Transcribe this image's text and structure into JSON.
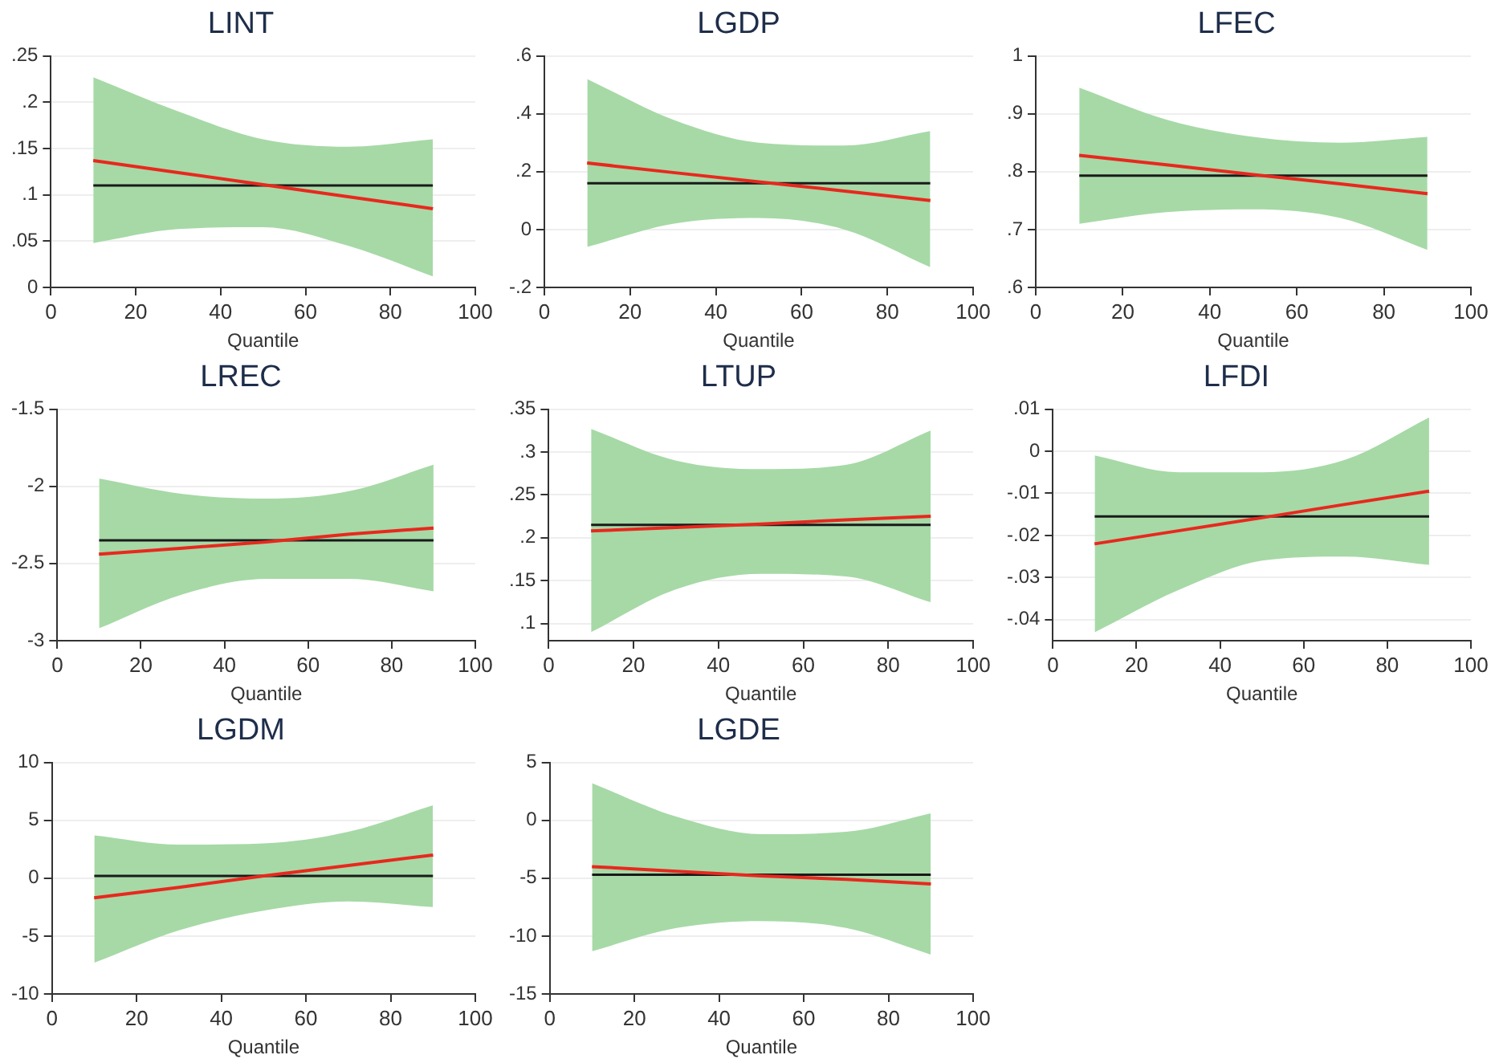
{
  "chart_data": [
    {
      "type": "line",
      "title": "LINT",
      "xlabel": "Quantile",
      "x": [
        10,
        30,
        50,
        70,
        90
      ],
      "xlim": [
        0,
        100
      ],
      "xticks": [
        0,
        20,
        40,
        60,
        80,
        100
      ],
      "ylim": [
        0,
        0.25
      ],
      "yticks": [
        0,
        {
          "value": 0.05,
          "label": ".05"
        },
        {
          "value": 0.1,
          "label": ".1"
        },
        {
          "value": 0.15,
          "label": ".15"
        },
        {
          "value": 0.2,
          "label": ".2"
        },
        {
          "value": 0.25,
          "label": ".25"
        }
      ],
      "grid": "y",
      "legend": false,
      "marker": "none",
      "series": [
        {
          "color": "#e8281e",
          "values": [
            0.137,
            0.124,
            0.111,
            0.098,
            0.085
          ],
          "lower": [
            0.048,
            0.063,
            0.065,
            0.045,
            0.012
          ],
          "upper": [
            0.227,
            0.19,
            0.16,
            0.152,
            0.16
          ]
        }
      ],
      "ref_lines": [
        {
          "axis": "y",
          "value": 0.11,
          "color": "#1a1a1a"
        }
      ]
    },
    {
      "type": "line",
      "title": "LGDP",
      "xlabel": "Quantile",
      "x": [
        10,
        30,
        50,
        70,
        90
      ],
      "xlim": [
        0,
        100
      ],
      "xticks": [
        0,
        20,
        40,
        60,
        80,
        100
      ],
      "ylim": [
        -0.2,
        0.6
      ],
      "yticks": [
        {
          "value": -0.2,
          "label": "-.2"
        },
        0,
        {
          "value": 0.2,
          "label": ".2"
        },
        {
          "value": 0.4,
          "label": ".4"
        },
        {
          "value": 0.6,
          "label": ".6"
        }
      ],
      "grid": "y",
      "legend": false,
      "marker": "none",
      "series": [
        {
          "color": "#e8281e",
          "values": [
            0.23,
            0.197,
            0.165,
            0.133,
            0.1
          ],
          "lower": [
            -0.06,
            0.02,
            0.04,
            0.0,
            -0.13
          ],
          "upper": [
            0.52,
            0.38,
            0.3,
            0.29,
            0.34
          ]
        }
      ],
      "ref_lines": [
        {
          "axis": "y",
          "value": 0.16,
          "color": "#1a1a1a"
        }
      ]
    },
    {
      "type": "line",
      "title": "LFEC",
      "xlabel": "Quantile",
      "x": [
        10,
        30,
        50,
        70,
        90
      ],
      "xlim": [
        0,
        100
      ],
      "xticks": [
        0,
        20,
        40,
        60,
        80,
        100
      ],
      "ylim": [
        0.6,
        1
      ],
      "yticks": [
        {
          "value": 0.6,
          "label": ".6"
        },
        {
          "value": 0.7,
          "label": ".7"
        },
        {
          "value": 0.8,
          "label": ".8"
        },
        {
          "value": 0.9,
          "label": ".9"
        },
        1
      ],
      "grid": "y",
      "legend": false,
      "marker": "none",
      "series": [
        {
          "color": "#e8281e",
          "values": [
            0.828,
            0.812,
            0.795,
            0.779,
            0.762
          ],
          "lower": [
            0.71,
            0.73,
            0.735,
            0.72,
            0.665
          ],
          "upper": [
            0.945,
            0.89,
            0.86,
            0.85,
            0.86
          ]
        }
      ],
      "ref_lines": [
        {
          "axis": "y",
          "value": 0.793,
          "color": "#1a1a1a"
        }
      ]
    },
    {
      "type": "line",
      "title": "LREC",
      "xlabel": "Quantile",
      "x": [
        10,
        30,
        50,
        70,
        90
      ],
      "xlim": [
        0,
        100
      ],
      "xticks": [
        0,
        20,
        40,
        60,
        80,
        100
      ],
      "ylim": [
        -3,
        -1.5
      ],
      "yticks": [
        -3,
        -2.5,
        -2,
        -1.5
      ],
      "grid": "y",
      "legend": false,
      "marker": "none",
      "series": [
        {
          "color": "#e8281e",
          "values": [
            -2.44,
            -2.4,
            -2.36,
            -2.31,
            -2.27
          ],
          "lower": [
            -2.92,
            -2.7,
            -2.6,
            -2.6,
            -2.68
          ],
          "upper": [
            -1.95,
            -2.05,
            -2.08,
            -2.03,
            -1.86
          ]
        }
      ],
      "ref_lines": [
        {
          "axis": "y",
          "value": -2.35,
          "color": "#1a1a1a"
        }
      ]
    },
    {
      "type": "line",
      "title": "LTUP",
      "xlabel": "Quantile",
      "x": [
        10,
        30,
        50,
        70,
        90
      ],
      "xlim": [
        0,
        100
      ],
      "xticks": [
        0,
        20,
        40,
        60,
        80,
        100
      ],
      "ylim": [
        0.08,
        0.35
      ],
      "yticks": [
        {
          "value": 0.1,
          "label": ".1"
        },
        {
          "value": 0.15,
          "label": ".15"
        },
        {
          "value": 0.2,
          "label": ".2"
        },
        {
          "value": 0.25,
          "label": ".25"
        },
        {
          "value": 0.3,
          "label": ".3"
        },
        {
          "value": 0.35,
          "label": ".35"
        }
      ],
      "grid": "y",
      "legend": false,
      "marker": "none",
      "series": [
        {
          "color": "#e8281e",
          "values": [
            0.208,
            0.212,
            0.216,
            0.221,
            0.225
          ],
          "lower": [
            0.09,
            0.14,
            0.158,
            0.155,
            0.125
          ],
          "upper": [
            0.327,
            0.29,
            0.28,
            0.285,
            0.325
          ]
        }
      ],
      "ref_lines": [
        {
          "axis": "y",
          "value": 0.215,
          "color": "#1a1a1a"
        }
      ]
    },
    {
      "type": "line",
      "title": "LFDI",
      "xlabel": "Quantile",
      "x": [
        10,
        30,
        50,
        70,
        90
      ],
      "xlim": [
        0,
        100
      ],
      "xticks": [
        0,
        20,
        40,
        60,
        80,
        100
      ],
      "ylim": [
        -0.045,
        0.01
      ],
      "yticks": [
        {
          "value": -0.04,
          "label": "-.04"
        },
        {
          "value": -0.03,
          "label": "-.03"
        },
        {
          "value": -0.02,
          "label": "-.02"
        },
        {
          "value": -0.01,
          "label": "-.01"
        },
        0,
        {
          "value": 0.01,
          "label": ".01"
        }
      ],
      "grid": "y",
      "legend": false,
      "marker": "none",
      "series": [
        {
          "color": "#e8281e",
          "values": [
            -0.022,
            -0.0189,
            -0.0158,
            -0.0126,
            -0.0095
          ],
          "lower": [
            -0.043,
            -0.033,
            -0.026,
            -0.025,
            -0.027
          ],
          "upper": [
            -0.001,
            -0.005,
            -0.005,
            -0.002,
            0.008
          ]
        }
      ],
      "ref_lines": [
        {
          "axis": "y",
          "value": -0.0155,
          "color": "#1a1a1a"
        }
      ]
    },
    {
      "type": "line",
      "title": "LGDM",
      "xlabel": "Quantile",
      "x": [
        10,
        30,
        50,
        70,
        90
      ],
      "xlim": [
        0,
        100
      ],
      "xticks": [
        0,
        20,
        40,
        60,
        80,
        100
      ],
      "ylim": [
        -10,
        10
      ],
      "yticks": [
        -10,
        -5,
        0,
        5,
        10
      ],
      "grid": "y",
      "legend": false,
      "marker": "none",
      "series": [
        {
          "color": "#e8281e",
          "values": [
            -1.7,
            -0.8,
            0.2,
            1.1,
            2.0
          ],
          "lower": [
            -7.3,
            -4.5,
            -2.8,
            -2.0,
            -2.5
          ],
          "upper": [
            3.7,
            2.9,
            3.0,
            4.0,
            6.3
          ]
        }
      ],
      "ref_lines": [
        {
          "axis": "y",
          "value": 0.2,
          "color": "#1a1a1a"
        }
      ]
    },
    {
      "type": "line",
      "title": "LGDE",
      "xlabel": "Quantile",
      "x": [
        10,
        30,
        50,
        70,
        90
      ],
      "xlim": [
        0,
        100
      ],
      "xticks": [
        0,
        20,
        40,
        60,
        80,
        100
      ],
      "ylim": [
        -15,
        5
      ],
      "yticks": [
        -15,
        -10,
        -5,
        0,
        5
      ],
      "grid": "y",
      "legend": false,
      "marker": "none",
      "series": [
        {
          "color": "#e8281e",
          "values": [
            -4.0,
            -4.4,
            -4.8,
            -5.1,
            -5.5
          ],
          "lower": [
            -11.3,
            -9.3,
            -8.7,
            -9.3,
            -11.6
          ],
          "upper": [
            3.2,
            0.3,
            -1.2,
            -1.0,
            0.6
          ]
        }
      ],
      "ref_lines": [
        {
          "axis": "y",
          "value": -4.7,
          "color": "#1a1a1a"
        }
      ]
    }
  ]
}
